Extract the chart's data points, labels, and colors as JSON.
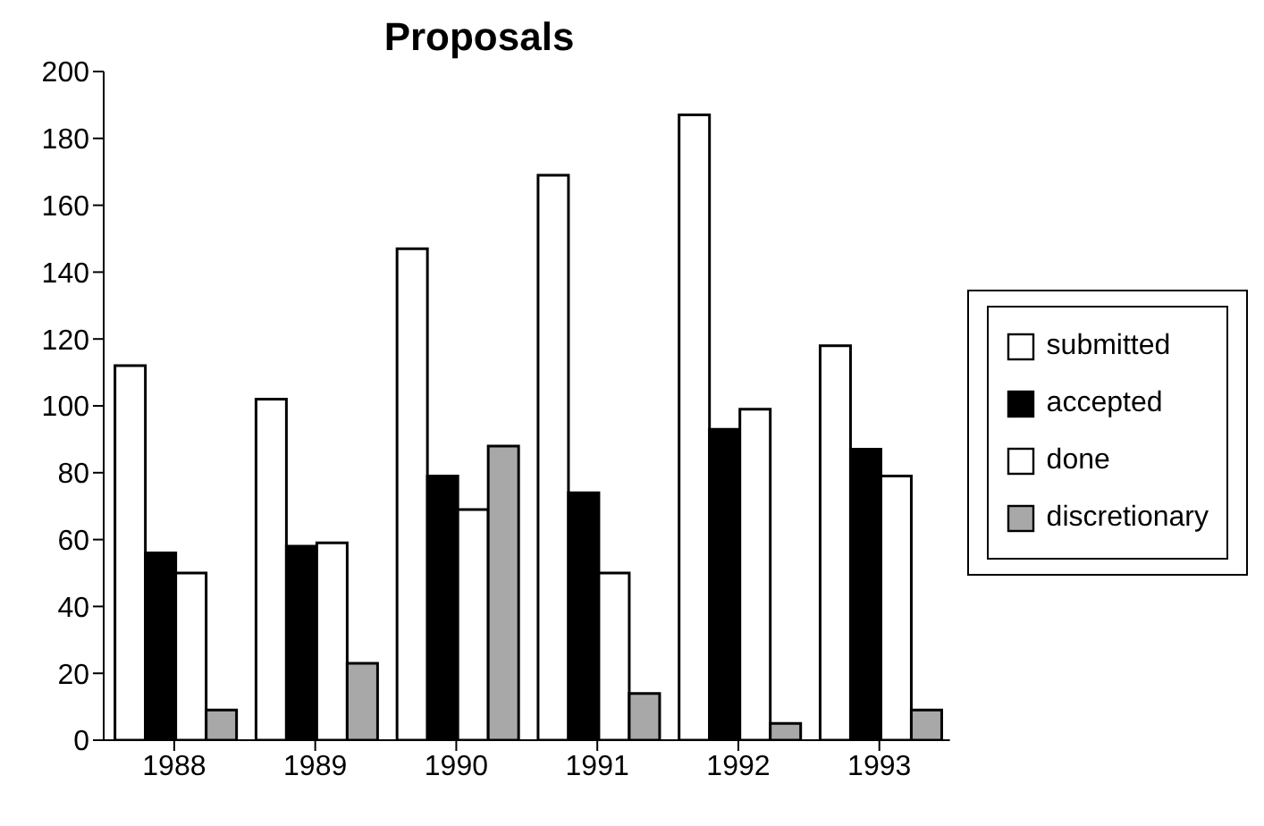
{
  "chart_data": {
    "type": "bar",
    "title": "Proposals",
    "categories": [
      "1988",
      "1989",
      "1990",
      "1991",
      "1992",
      "1993"
    ],
    "series": [
      {
        "name": "submitted",
        "color": "#ffffff",
        "values": [
          112,
          102,
          147,
          169,
          187,
          118
        ]
      },
      {
        "name": "accepted",
        "color": "#000000",
        "values": [
          56,
          58,
          79,
          74,
          93,
          87
        ]
      },
      {
        "name": "done",
        "color": "#ffffff",
        "values": [
          50,
          59,
          69,
          50,
          99,
          79
        ]
      },
      {
        "name": "discretionary",
        "color": "#a8a8a8",
        "values": [
          9,
          23,
          88,
          14,
          5,
          9
        ]
      }
    ],
    "ylim": [
      0,
      200
    ],
    "yticks": [
      0,
      20,
      40,
      60,
      80,
      100,
      120,
      140,
      160,
      180,
      200
    ],
    "grid": false,
    "legend": "right"
  }
}
